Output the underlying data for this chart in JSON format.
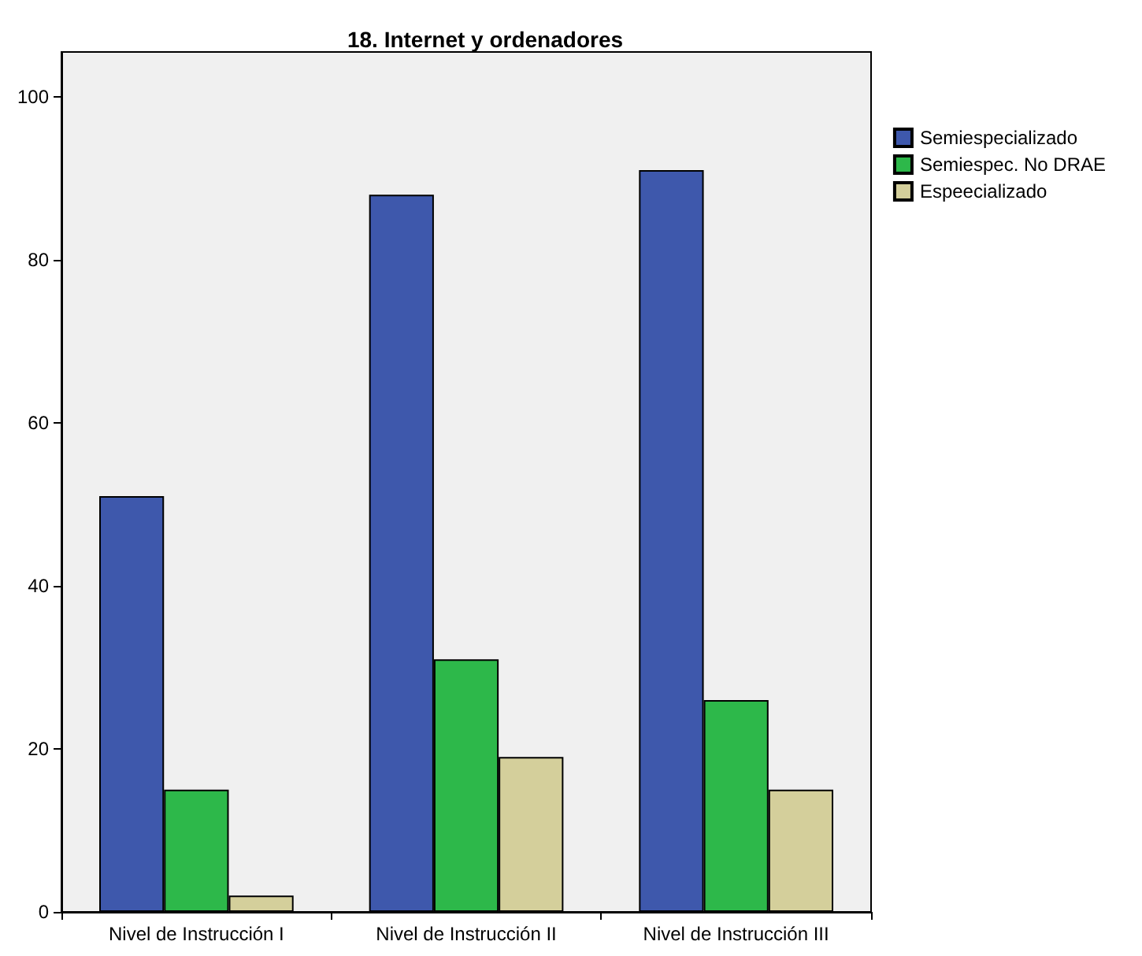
{
  "chart_data": {
    "type": "bar",
    "title": "18. Internet y ordenadores",
    "categories": [
      "Nivel de Instrucción I",
      "Nivel de Instrucción II",
      "Nivel de Instrucción III"
    ],
    "series": [
      {
        "name": "Semiespecializado",
        "color": "#3e58ac",
        "values": [
          51,
          88,
          91
        ]
      },
      {
        "name": "Semiespec. No DRAE",
        "color": "#2db84a",
        "values": [
          15,
          31,
          26
        ]
      },
      {
        "name": "Espeecializado",
        "color": "#d4cf9b",
        "values": [
          2,
          19,
          15
        ]
      }
    ],
    "ylim": [
      0,
      105.5
    ],
    "yticks": [
      0,
      20,
      40,
      60,
      80,
      100
    ],
    "grid": false,
    "legend": "right"
  }
}
